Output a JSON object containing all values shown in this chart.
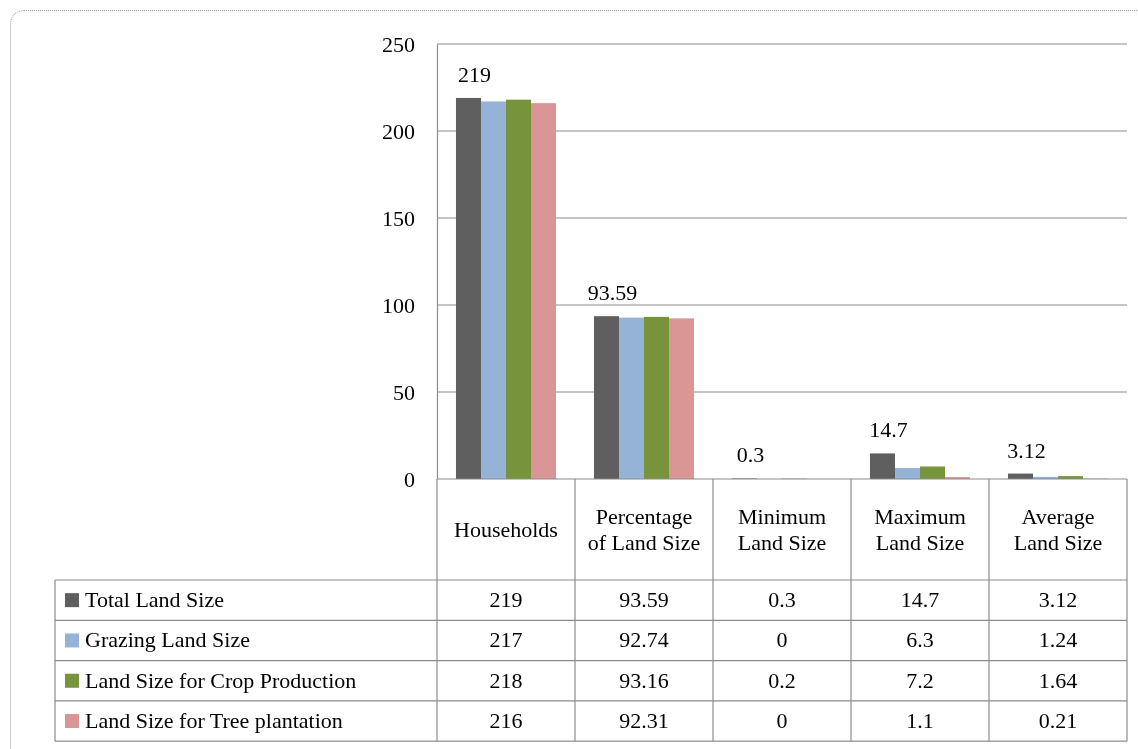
{
  "chart_data": {
    "type": "bar",
    "categories": [
      "Households",
      "Percentage of Land Size",
      "Minimum Land Size",
      "Maximum Land Size",
      "Average Land Size"
    ],
    "series": [
      {
        "name": "Total Land Size",
        "color": "#5f5f5f",
        "values": [
          219,
          93.59,
          0.3,
          14.7,
          3.12
        ]
      },
      {
        "name": "Grazing Land Size",
        "color": "#95b3d7",
        "values": [
          217,
          92.74,
          0,
          6.3,
          1.24
        ]
      },
      {
        "name": "Land Size for Crop Production",
        "color": "#77933c",
        "values": [
          218,
          93.16,
          0.2,
          7.2,
          1.64
        ]
      },
      {
        "name": "Land Size for Tree plantation",
        "color": "#d99694",
        "values": [
          216,
          92.31,
          0,
          1.1,
          0.21
        ]
      }
    ],
    "annotations": [
      "219",
      "93.59",
      "0.3",
      "14.7",
      "3.12"
    ],
    "ylim": [
      0,
      250
    ],
    "yticks": [
      0,
      50,
      100,
      150,
      200,
      250
    ],
    "grid": "y",
    "legend": "bottom",
    "data_labels": true
  }
}
